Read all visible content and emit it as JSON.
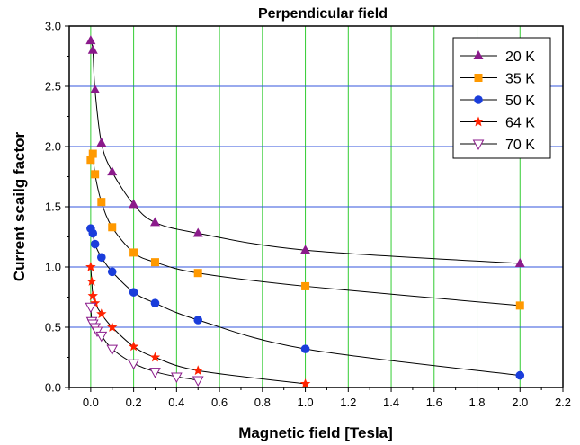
{
  "chart_data": {
    "type": "scatter",
    "title": "Perpendicular field",
    "xlabel": "Magnetic field [Tesla]",
    "ylabel": "Current scailg factor",
    "xlim": [
      -0.1,
      2.2
    ],
    "ylim": [
      0,
      3.0
    ],
    "xticks": [
      0.0,
      0.2,
      0.4,
      0.6,
      0.8,
      1.0,
      1.2,
      1.4,
      1.6,
      1.8,
      2.0,
      2.2
    ],
    "xtick_labels": [
      "0.0",
      "0.2",
      "0.4",
      "0.6",
      "0.8",
      "1.0",
      "1.2",
      "1.4",
      "1.6",
      "1.8",
      "2.0",
      "2.2"
    ],
    "yticks": [
      0.0,
      0.5,
      1.0,
      1.5,
      2.0,
      2.5,
      3.0
    ],
    "ytick_labels": [
      "0.0",
      "0.5",
      "1.0",
      "1.5",
      "2.0",
      "2.5",
      "3.0"
    ],
    "grid": {
      "x": true,
      "y": true,
      "x_color": "#33cc33",
      "y_color": "#3355dd"
    },
    "legend_position": "top-right",
    "fit_line_color": "#000000",
    "series": [
      {
        "name": "20 K",
        "marker": "triangle-up",
        "color": "#8b1a8b",
        "x": [
          0.0,
          0.01,
          0.02,
          0.05,
          0.1,
          0.2,
          0.3,
          0.5,
          1.0,
          2.0
        ],
        "y": [
          2.88,
          2.8,
          2.47,
          2.03,
          1.79,
          1.52,
          1.37,
          1.28,
          1.14,
          1.03
        ]
      },
      {
        "name": "35 K",
        "marker": "square",
        "color": "#ff9900",
        "x": [
          0.0,
          0.01,
          0.02,
          0.05,
          0.1,
          0.2,
          0.3,
          0.5,
          1.0,
          2.0
        ],
        "y": [
          1.89,
          1.94,
          1.77,
          1.54,
          1.33,
          1.12,
          1.04,
          0.95,
          0.84,
          0.68
        ]
      },
      {
        "name": "50 K",
        "marker": "circle",
        "color": "#1a3ddb",
        "x": [
          0.0,
          0.01,
          0.02,
          0.05,
          0.1,
          0.2,
          0.3,
          0.5,
          1.0,
          2.0
        ],
        "y": [
          1.32,
          1.28,
          1.19,
          1.08,
          0.96,
          0.79,
          0.7,
          0.56,
          0.32,
          0.1
        ]
      },
      {
        "name": "64 K",
        "marker": "star",
        "color": "#ff2200",
        "x": [
          0.0,
          0.005,
          0.01,
          0.02,
          0.05,
          0.1,
          0.2,
          0.3,
          0.5,
          1.0
        ],
        "y": [
          1.0,
          0.88,
          0.76,
          0.7,
          0.61,
          0.5,
          0.34,
          0.25,
          0.14,
          0.03
        ]
      },
      {
        "name": "70 K",
        "marker": "triangle-down-open",
        "color": "#8b1a8b",
        "x": [
          0.0,
          0.005,
          0.01,
          0.02,
          0.03,
          0.05,
          0.1,
          0.2,
          0.3,
          0.4,
          0.5
        ],
        "y": [
          0.67,
          0.55,
          0.53,
          0.5,
          0.47,
          0.43,
          0.32,
          0.2,
          0.13,
          0.09,
          0.06
        ]
      }
    ]
  }
}
